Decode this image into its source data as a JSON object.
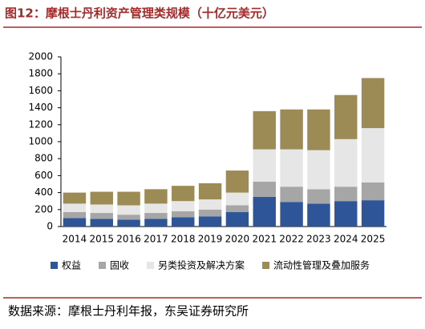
{
  "chart_data": {
    "type": "stacked_bar",
    "title": "图12：摩根士丹利资产管理类规模（十亿元美元）",
    "source": "数据来源：摩根士丹利年报，东吴证券研究所",
    "categories": [
      "2014",
      "2015",
      "2016",
      "2017",
      "2018",
      "2019",
      "2020",
      "2021",
      "2022",
      "2023",
      "2024",
      "2025"
    ],
    "series": [
      {
        "name": "权益",
        "color": "#2e5597",
        "values": [
          100,
          90,
          80,
          90,
          110,
          120,
          170,
          350,
          290,
          270,
          300,
          310
        ]
      },
      {
        "name": "固收",
        "color": "#a6a6a6",
        "values": [
          70,
          70,
          60,
          70,
          70,
          80,
          80,
          180,
          180,
          170,
          170,
          210
        ]
      },
      {
        "name": "另类投资及解决方案",
        "color": "#e6e6e6",
        "values": [
          100,
          100,
          110,
          110,
          120,
          120,
          150,
          380,
          440,
          460,
          560,
          640
        ]
      },
      {
        "name": "流动性管理及叠加服务",
        "color": "#9c8b54",
        "values": [
          130,
          150,
          160,
          170,
          180,
          190,
          260,
          450,
          470,
          480,
          520,
          590
        ]
      }
    ],
    "ylim": [
      0,
      2000
    ],
    "yticks": [
      0,
      200,
      400,
      600,
      800,
      1000,
      1200,
      1400,
      1600,
      1800,
      2000
    ]
  }
}
